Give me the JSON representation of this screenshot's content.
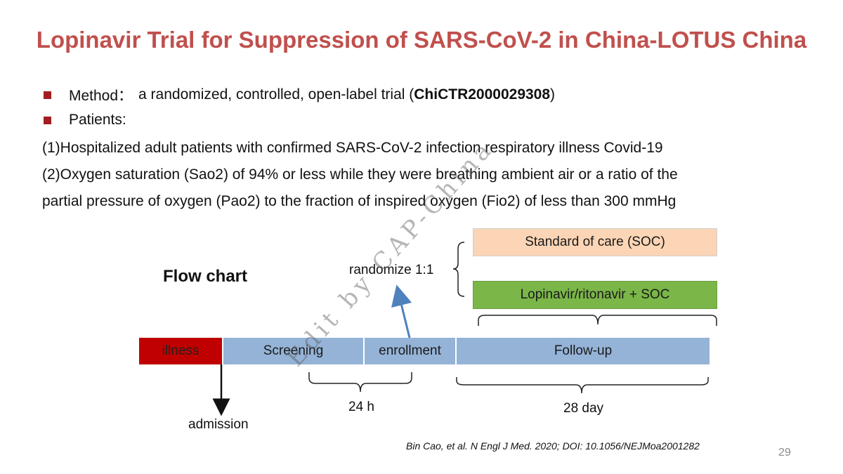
{
  "title": "Lopinavir Trial for Suppression of SARS-CoV-2 in China-LOTUS China",
  "bullets": {
    "method_label": "Method：",
    "method_text": "a randomized, controlled, open-label trial (",
    "method_id": "ChiCTR2000029308",
    "method_close": ")",
    "patients_label": "Patients:"
  },
  "criteria": {
    "line1": "(1)Hospitalized adult patients with confirmed SARS-CoV-2 infection respiratory illness Covid-19",
    "line2": "(2)Oxygen saturation (Sao2) of 94% or less while they were breathing ambient air or a ratio of the",
    "line3": "partial pressure of oxygen (Pao2) to the fraction of inspired oxygen (Fio2) of less than 300 mmHg"
  },
  "flow": {
    "title": "Flow chart",
    "randomize": "randomize 1:1",
    "soc": "Standard of care (SOC)",
    "lopinavir": "Lopinavir/ritonavir + SOC",
    "illness": "illness",
    "screening": "Screening",
    "enrollment": "enrollment",
    "followup": "Follow-up",
    "admission": "admission",
    "hours": "24 h",
    "days": "28 day"
  },
  "watermark": "Edit by CAP-China",
  "citation": "Bin Cao, et al. N Engl J Med. 2020; DOI: 10.1056/NEJMoa2001282",
  "page_number": "29",
  "colors": {
    "title": "#c0504d",
    "bullet": "#a31f1f",
    "soc": "#fbd5b5",
    "lopinavir": "#7ab648",
    "illness": "#c00000",
    "timeline": "#95b3d7",
    "arrow": "#4f81bd"
  }
}
